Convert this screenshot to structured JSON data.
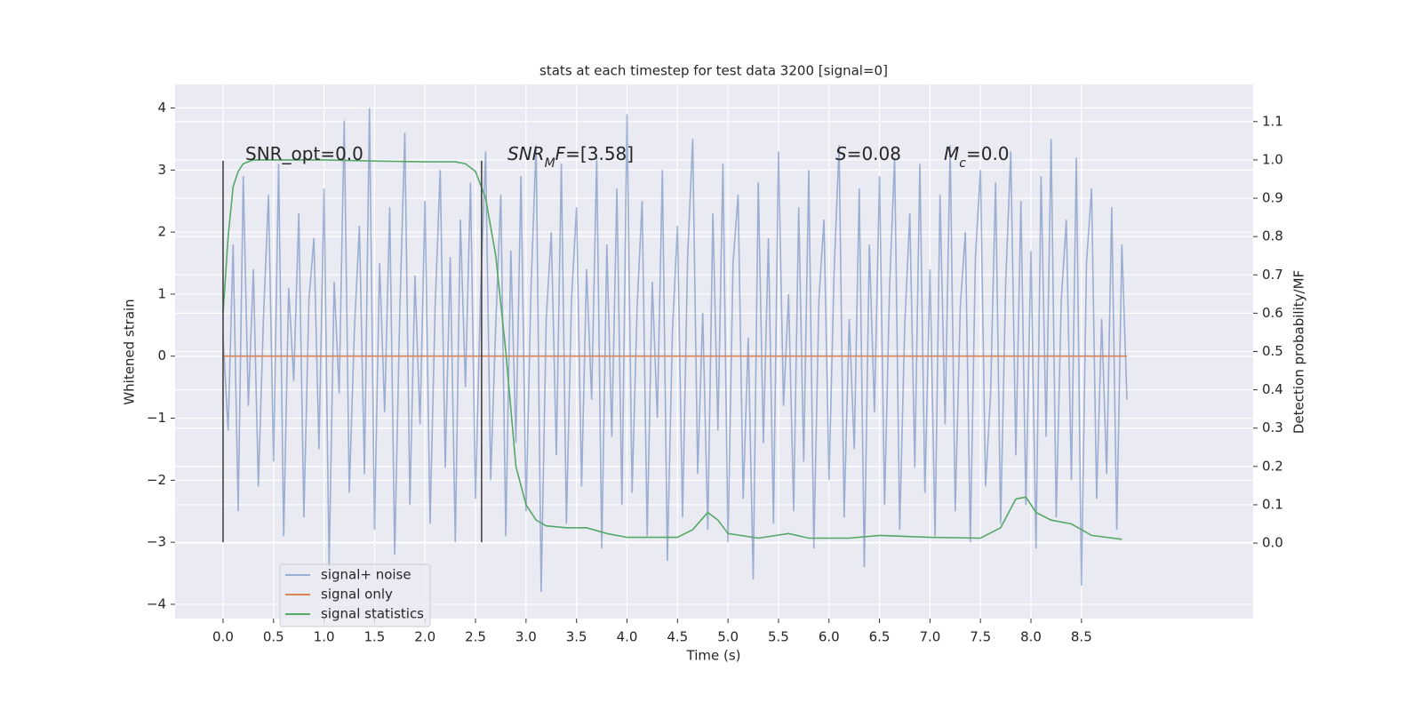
{
  "chart_data": {
    "type": "line",
    "title": "stats at each timestep for test data 3200 [signal=0]",
    "xlabel": "Time (s)",
    "ylabel": "Whitened strain",
    "y2label": "Detection probability/MF",
    "xlim": [
      -0.475,
      10.2
    ],
    "ylim": [
      -4.23,
      4.38
    ],
    "y2lim": [
      -0.197,
      1.197
    ],
    "xticks": [
      {
        "value": 0,
        "label": "0.0"
      },
      {
        "value": 0.5,
        "label": "0.5"
      },
      {
        "value": 1,
        "label": "1.0"
      },
      {
        "value": 1.5,
        "label": "1.5"
      },
      {
        "value": 2,
        "label": "2.0"
      },
      {
        "value": 2.5,
        "label": "2.5"
      },
      {
        "value": 3,
        "label": "3.0"
      },
      {
        "value": 3.5,
        "label": "3.5"
      },
      {
        "value": 4,
        "label": "4.0"
      },
      {
        "value": 4.5,
        "label": "4.5"
      },
      {
        "value": 5,
        "label": "5.0"
      },
      {
        "value": 5.5,
        "label": "5.5"
      },
      {
        "value": 6,
        "label": "6.0"
      },
      {
        "value": 6.5,
        "label": "6.5"
      },
      {
        "value": 7,
        "label": "7.0"
      },
      {
        "value": 7.5,
        "label": "7.5"
      },
      {
        "value": 8,
        "label": "8.0"
      },
      {
        "value": 8.5,
        "label": "8.5"
      }
    ],
    "yticks": [
      {
        "value": -4,
        "label": "−4"
      },
      {
        "value": -3,
        "label": "−3"
      },
      {
        "value": -2,
        "label": "−2"
      },
      {
        "value": -1,
        "label": "−1"
      },
      0,
      1,
      2,
      3,
      4
    ],
    "y2ticks": [
      {
        "value": 0,
        "label": "0.0"
      },
      {
        "value": 0.1,
        "label": "0.1"
      },
      {
        "value": 0.2,
        "label": "0.2"
      },
      {
        "value": 0.3,
        "label": "0.3"
      },
      {
        "value": 0.4,
        "label": "0.4"
      },
      {
        "value": 0.5,
        "label": "0.5"
      },
      {
        "value": 0.6,
        "label": "0.6"
      },
      {
        "value": 0.7,
        "label": "0.7"
      },
      {
        "value": 0.8,
        "label": "0.8"
      },
      {
        "value": 0.9,
        "label": "0.9"
      },
      {
        "value": 1,
        "label": "1.0"
      },
      {
        "value": 1.1,
        "label": "1.1"
      }
    ],
    "grid": true,
    "legend": "lower left",
    "series": [
      {
        "name": "signal+ noise",
        "color": "#4c72b0",
        "alpha": 0.5,
        "x": [
          0,
          0.05,
          0.1,
          0.15,
          0.2,
          0.25,
          0.3,
          0.35,
          0.4,
          0.45,
          0.5,
          0.55,
          0.6,
          0.65,
          0.7,
          0.75,
          0.8,
          0.85,
          0.9,
          0.95,
          1,
          1.05,
          1.1,
          1.15,
          1.2,
          1.25,
          1.3,
          1.35,
          1.4,
          1.45,
          1.5,
          1.55,
          1.6,
          1.65,
          1.7,
          1.75,
          1.8,
          1.85,
          1.9,
          1.95,
          2,
          2.05,
          2.1,
          2.15,
          2.2,
          2.25,
          2.3,
          2.35,
          2.4,
          2.45,
          2.5,
          2.55,
          2.6,
          2.65,
          2.7,
          2.75,
          2.8,
          2.85,
          2.9,
          2.95,
          3,
          3.05,
          3.1,
          3.15,
          3.2,
          3.25,
          3.3,
          3.35,
          3.4,
          3.45,
          3.5,
          3.55,
          3.6,
          3.65,
          3.7,
          3.75,
          3.8,
          3.85,
          3.9,
          3.95,
          4,
          4.05,
          4.1,
          4.15,
          4.2,
          4.25,
          4.3,
          4.35,
          4.4,
          4.45,
          4.5,
          4.55,
          4.6,
          4.65,
          4.7,
          4.75,
          4.8,
          4.85,
          4.9,
          4.95,
          5,
          5.05,
          5.1,
          5.15,
          5.2,
          5.25,
          5.3,
          5.35,
          5.4,
          5.45,
          5.5,
          5.55,
          5.6,
          5.65,
          5.7,
          5.75,
          5.8,
          5.85,
          5.9,
          5.95,
          6,
          6.05,
          6.1,
          6.15,
          6.2,
          6.25,
          6.3,
          6.35,
          6.4,
          6.45,
          6.5,
          6.55,
          6.6,
          6.65,
          6.7,
          6.75,
          6.8,
          6.85,
          6.9,
          6.95,
          7,
          7.05,
          7.1,
          7.15,
          7.2,
          7.25,
          7.3,
          7.35,
          7.4,
          7.45,
          7.5,
          7.55,
          7.6,
          7.65,
          7.7,
          7.75,
          7.8,
          7.85,
          7.9,
          7.95,
          8,
          8.05,
          8.1,
          8.15,
          8.2,
          8.25,
          8.3,
          8.35,
          8.4,
          8.45,
          8.5,
          8.55,
          8.6,
          8.65,
          8.7,
          8.75,
          8.8,
          8.85,
          8.9,
          8.95
        ],
        "values": [
          0.3,
          -1.2,
          1.8,
          -2.5,
          2.9,
          -0.8,
          1.4,
          -2.1,
          0.6,
          2.6,
          -1.7,
          3.1,
          -2.9,
          1.1,
          -0.4,
          2.3,
          -2.6,
          0.9,
          1.9,
          -1.5,
          2.7,
          -3.4,
          1.2,
          -0.6,
          3.8,
          -2.2,
          0.4,
          2.1,
          -1.9,
          4.0,
          -2.8,
          1.5,
          -0.9,
          2.4,
          -3.2,
          0.7,
          3.6,
          -2.4,
          1.3,
          -1.1,
          2.5,
          -2.7,
          0.8,
          3.0,
          -1.8,
          1.6,
          -3.0,
          2.2,
          -0.5,
          2.8,
          -2.3,
          1.0,
          3.3,
          -2.0,
          0.5,
          2.6,
          -2.9,
          1.7,
          -1.4,
          2.9,
          -2.5,
          1.1,
          3.4,
          -3.8,
          0.6,
          2.0,
          -1.6,
          3.1,
          -2.7,
          0.9,
          2.4,
          -2.1,
          1.4,
          -0.7,
          3.2,
          -3.1,
          1.8,
          -1.3,
          2.7,
          -2.4,
          3.9,
          -2.2,
          0.8,
          2.5,
          -2.9,
          1.2,
          -1.0,
          3.0,
          -3.3,
          0.4,
          2.1,
          -2.6,
          1.6,
          3.5,
          -1.9,
          0.7,
          -2.8,
          2.3,
          -1.2,
          3.1,
          -3.0,
          1.5,
          2.6,
          -2.3,
          0.3,
          -3.6,
          2.8,
          -1.4,
          1.9,
          -2.7,
          3.3,
          -0.8,
          1.0,
          -2.5,
          2.4,
          -1.7,
          3.0,
          -3.1,
          0.9,
          2.2,
          -2.0,
          1.3,
          3.4,
          -2.6,
          0.6,
          -1.5,
          2.7,
          -3.4,
          1.8,
          -0.9,
          2.9,
          -2.4,
          1.1,
          3.2,
          -2.8,
          0.5,
          2.3,
          -1.8,
          3.1,
          -2.2,
          1.4,
          -2.9,
          2.6,
          -1.1,
          3.4,
          -2.5,
          0.8,
          2.0,
          -3.0,
          1.6,
          3.0,
          -2.1,
          -0.6,
          2.8,
          -2.7,
          1.2,
          3.3,
          -1.6,
          2.5,
          -2.4,
          1.7,
          -3.1,
          2.9,
          -1.3,
          3.5,
          -2.6,
          0.9,
          2.2,
          -2.0,
          3.2,
          -3.7,
          1.5,
          2.7,
          -2.3,
          0.6,
          -1.9,
          2.4,
          -2.8,
          1.8,
          -0.7
        ]
      },
      {
        "name": "signal only",
        "color": "#dd8452",
        "alpha": 1,
        "x": [
          0,
          8.95
        ],
        "values": [
          0,
          0
        ]
      },
      {
        "name": "signal statistics",
        "color": "#55a868",
        "alpha": 1,
        "axis": "y2",
        "x": [
          0,
          0.05,
          0.1,
          0.15,
          0.2,
          0.3,
          0.5,
          1,
          1.5,
          2,
          2.3,
          2.4,
          2.5,
          2.6,
          2.7,
          2.8,
          2.9,
          3,
          3.1,
          3.2,
          3.4,
          3.6,
          3.8,
          4,
          4.5,
          4.65,
          4.8,
          4.9,
          5,
          5.3,
          5.6,
          5.8,
          6.2,
          6.5,
          7,
          7.5,
          7.7,
          7.85,
          7.95,
          8.05,
          8.2,
          8.4,
          8.6,
          8.9
        ],
        "values": [
          0.6,
          0.8,
          0.93,
          0.97,
          0.99,
          1.0,
          1.0,
          1.0,
          0.997,
          0.995,
          0.995,
          0.99,
          0.97,
          0.9,
          0.75,
          0.5,
          0.2,
          0.1,
          0.06,
          0.045,
          0.04,
          0.04,
          0.025,
          0.015,
          0.015,
          0.035,
          0.08,
          0.06,
          0.025,
          0.013,
          0.025,
          0.013,
          0.013,
          0.02,
          0.015,
          0.013,
          0.04,
          0.115,
          0.12,
          0.08,
          0.06,
          0.05,
          0.02,
          0.01
        ]
      }
    ],
    "vlines": [
      {
        "x": 0,
        "ymin": -3,
        "ymax": 3.15
      },
      {
        "x": 2.56,
        "ymin": -3,
        "ymax": 3.15
      }
    ],
    "annotations": [
      [
        {
          "text": "SNR_opt=0.0",
          "style": "normal"
        }
      ],
      [
        {
          "text": "SNR",
          "style": "italic"
        },
        {
          "text": "M",
          "style": "sub"
        },
        {
          "text": "F",
          "style": "italic"
        },
        {
          "text": "=[3.58]",
          "style": "normal"
        }
      ],
      [
        {
          "text": "S",
          "style": "italic"
        },
        {
          "text": "=0.08",
          "style": "normal"
        }
      ],
      [
        {
          "text": "M",
          "style": "italic"
        },
        {
          "text": "c",
          "style": "sub"
        },
        {
          "text": "=0.0",
          "style": "normal"
        }
      ]
    ]
  }
}
